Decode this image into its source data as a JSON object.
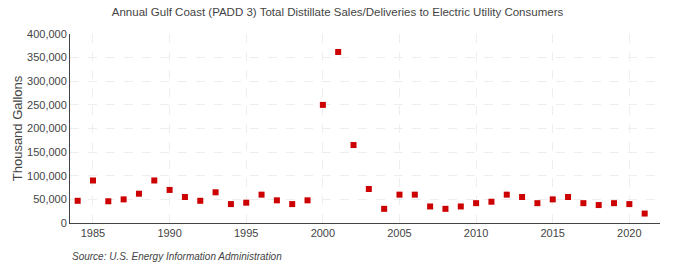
{
  "chart_data": {
    "type": "scatter",
    "title": "Annual Gulf Coast (PADD 3) Total Distillate Sales/Deliveries to Electric Utility Consumers",
    "ylabel": "Thousand Gallons",
    "annotations": [
      "Source: U.S. Energy Information Administration"
    ],
    "x": [
      1984,
      1985,
      1986,
      1987,
      1988,
      1989,
      1990,
      1991,
      1992,
      1993,
      1994,
      1995,
      1996,
      1997,
      1998,
      1999,
      2000,
      2001,
      2002,
      2003,
      2004,
      2005,
      2006,
      2007,
      2008,
      2009,
      2010,
      2011,
      2012,
      2013,
      2014,
      2015,
      2016,
      2017,
      2018,
      2019,
      2020,
      2021
    ],
    "values": [
      47000,
      90000,
      46000,
      50000,
      62000,
      90000,
      70000,
      55000,
      47000,
      65000,
      40000,
      43000,
      60000,
      48000,
      40000,
      48000,
      250000,
      362000,
      165000,
      72000,
      30000,
      60000,
      60000,
      35000,
      30000,
      35000,
      42000,
      45000,
      60000,
      55000,
      42000,
      50000,
      55000,
      42000,
      38000,
      42000,
      40000,
      20000
    ],
    "color": "#cc0000",
    "marker": "square",
    "grid": true,
    "xlim": [
      1983.5,
      2022
    ],
    "xticks": [
      1985,
      1990,
      1995,
      2000,
      2005,
      2010,
      2015,
      2020
    ],
    "ylim": [
      0,
      400000
    ],
    "yticks": [
      0,
      {
        "value": 50000,
        "label": "50,000"
      },
      {
        "value": 100000,
        "label": "100,000"
      },
      {
        "value": 150000,
        "label": "150,000"
      },
      {
        "value": 200000,
        "label": "200,000"
      },
      {
        "value": 250000,
        "label": "250,000"
      },
      {
        "value": 300000,
        "label": "300,000"
      },
      {
        "value": 350000,
        "label": "350,000"
      },
      {
        "value": 400000,
        "label": "400,000"
      }
    ]
  }
}
